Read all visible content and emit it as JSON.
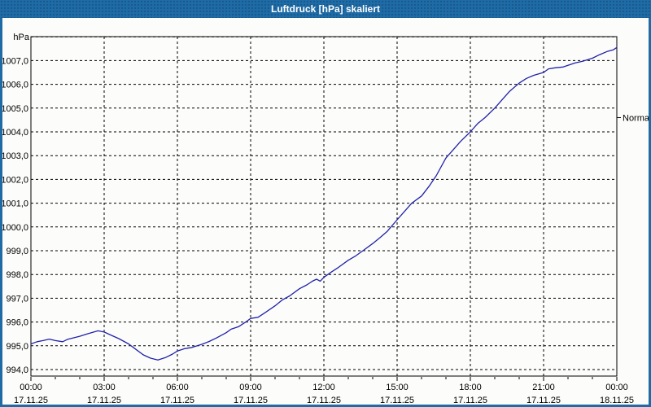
{
  "window": {
    "title": "Luftdruck [hPa] skaliert"
  },
  "colors": {
    "titlebar": "#1e6ba6",
    "window_border": "#1e6ba6",
    "background": "#fcfdfa",
    "gridline": "#000000",
    "axis": "#000000",
    "series_line": "#2121aa",
    "title_text": "#ffffff",
    "label_text": "#000000"
  },
  "chart_data": {
    "type": "line",
    "title": "Luftdruck [hPa] skaliert",
    "grid": "dashed",
    "legend_position": "none",
    "y_axis": {
      "unit_label": "hPa",
      "top_value": 1008,
      "ylim": [
        993.7,
        1008.0
      ],
      "ticks": [
        {
          "value": 1007,
          "label": "1007,0"
        },
        {
          "value": 1006,
          "label": "1006,0"
        },
        {
          "value": 1005,
          "label": "1005,0"
        },
        {
          "value": 1004,
          "label": "1004,0"
        },
        {
          "value": 1003,
          "label": "1003,0"
        },
        {
          "value": 1002,
          "label": "1002,0"
        },
        {
          "value": 1001,
          "label": "1001,0"
        },
        {
          "value": 1000,
          "label": "1000,0"
        },
        {
          "value": 999,
          "label": "999,0"
        },
        {
          "value": 998,
          "label": "998,0"
        },
        {
          "value": 997,
          "label": "997,0"
        },
        {
          "value": 996,
          "label": "996,0"
        },
        {
          "value": 995,
          "label": "995,0"
        },
        {
          "value": 994,
          "label": "994,0"
        }
      ]
    },
    "x_axis": {
      "xlim_hours": [
        0,
        24
      ],
      "minor_tick_every_hours": 1,
      "gridline_hours": [
        3,
        6,
        9,
        12,
        15,
        18,
        21
      ],
      "ticks": [
        {
          "hour": 0,
          "time": "00:00",
          "date": "17.11.25"
        },
        {
          "hour": 3,
          "time": "03:00",
          "date": "17.11.25"
        },
        {
          "hour": 6,
          "time": "06:00",
          "date": "17.11.25"
        },
        {
          "hour": 9,
          "time": "09:00",
          "date": "17.11.25"
        },
        {
          "hour": 12,
          "time": "12:00",
          "date": "17.11.25"
        },
        {
          "hour": 15,
          "time": "15:00",
          "date": "17.11.25"
        },
        {
          "hour": 18,
          "time": "18:00",
          "date": "17.11.25"
        },
        {
          "hour": 21,
          "time": "21:00",
          "date": "17.11.25"
        },
        {
          "hour": 24,
          "time": "00:00",
          "date": "18.11.25"
        }
      ]
    },
    "annotations": [
      {
        "label": "Normal",
        "value": 1004.6,
        "side": "right"
      }
    ],
    "series": [
      {
        "name": "Luftdruck",
        "color": "#2121aa",
        "points": [
          [
            0,
            995.08
          ],
          [
            0.25,
            995.17
          ],
          [
            0.5,
            995.22
          ],
          [
            0.75,
            995.28
          ],
          [
            1,
            995.22
          ],
          [
            1.3,
            995.17
          ],
          [
            1.5,
            995.27
          ],
          [
            2,
            995.4
          ],
          [
            2.3,
            995.5
          ],
          [
            2.75,
            995.63
          ],
          [
            3,
            995.58
          ],
          [
            3.3,
            995.44
          ],
          [
            3.6,
            995.3
          ],
          [
            4,
            995.08
          ],
          [
            4.3,
            994.85
          ],
          [
            4.6,
            994.62
          ],
          [
            4.9,
            994.48
          ],
          [
            5.2,
            994.4
          ],
          [
            5.5,
            994.5
          ],
          [
            5.8,
            994.65
          ],
          [
            6,
            994.78
          ],
          [
            6.3,
            994.88
          ],
          [
            6.6,
            994.93
          ],
          [
            7,
            995.06
          ],
          [
            7.3,
            995.18
          ],
          [
            7.6,
            995.33
          ],
          [
            8,
            995.55
          ],
          [
            8.2,
            995.7
          ],
          [
            8.5,
            995.8
          ],
          [
            8.8,
            996.0
          ],
          [
            9,
            996.15
          ],
          [
            9.3,
            996.2
          ],
          [
            9.6,
            996.4
          ],
          [
            10,
            996.68
          ],
          [
            10.3,
            996.93
          ],
          [
            10.6,
            997.1
          ],
          [
            11,
            997.4
          ],
          [
            11.3,
            997.56
          ],
          [
            11.55,
            997.73
          ],
          [
            11.7,
            997.8
          ],
          [
            11.85,
            997.72
          ],
          [
            12,
            997.88
          ],
          [
            12.3,
            998.1
          ],
          [
            12.6,
            998.3
          ],
          [
            13,
            998.6
          ],
          [
            13.3,
            998.78
          ],
          [
            13.6,
            999.0
          ],
          [
            14,
            999.3
          ],
          [
            14.3,
            999.55
          ],
          [
            14.6,
            999.82
          ],
          [
            15,
            1000.3
          ],
          [
            15.3,
            1000.65
          ],
          [
            15.6,
            1001.0
          ],
          [
            15.8,
            1001.15
          ],
          [
            16,
            1001.3
          ],
          [
            16.3,
            1001.7
          ],
          [
            16.6,
            1002.15
          ],
          [
            17,
            1002.9
          ],
          [
            17.3,
            1003.25
          ],
          [
            17.6,
            1003.6
          ],
          [
            18,
            1004.0
          ],
          [
            18.3,
            1004.35
          ],
          [
            18.6,
            1004.6
          ],
          [
            19,
            1005.0
          ],
          [
            19.3,
            1005.35
          ],
          [
            19.6,
            1005.7
          ],
          [
            20,
            1006.05
          ],
          [
            20.3,
            1006.25
          ],
          [
            20.6,
            1006.38
          ],
          [
            21,
            1006.5
          ],
          [
            21.2,
            1006.65
          ],
          [
            21.5,
            1006.7
          ],
          [
            21.8,
            1006.73
          ],
          [
            22,
            1006.8
          ],
          [
            22.3,
            1006.9
          ],
          [
            22.6,
            1006.97
          ],
          [
            23,
            1007.1
          ],
          [
            23.3,
            1007.25
          ],
          [
            23.6,
            1007.38
          ],
          [
            23.85,
            1007.45
          ],
          [
            24,
            1007.55
          ]
        ]
      }
    ]
  }
}
